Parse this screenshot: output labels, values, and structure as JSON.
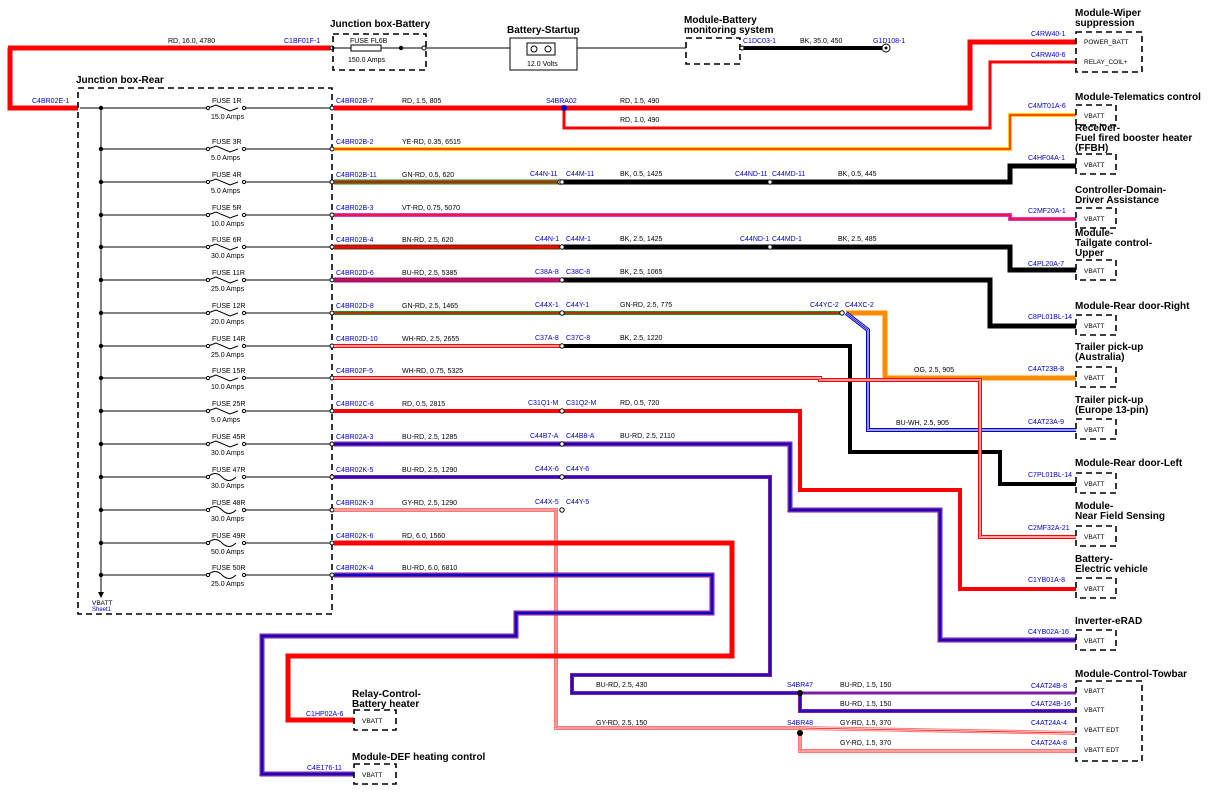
{
  "components": {
    "jb_battery": "Junction box-Battery",
    "battery_startup": "Battery-Startup",
    "battery_volts": "12.0 Volts",
    "bms": "Module-Battery monitoring system",
    "wiper": "Module-Wiper suppression",
    "jb_rear": "Junction box-Rear",
    "telematics": "Module-Telematics control",
    "ffbh": "Receiver-Fuel fired booster heater (FFBH)",
    "adas": "Controller-Domain-Driver Assistance",
    "tailgate": "Module-Tailgate control-Upper",
    "rear_door_right": "Module-Rear door-Right",
    "trailer_au": "Trailer pick-up (Australia)",
    "trailer_eu": "Trailer pick-up (Europe 13-pin)",
    "rear_door_left": "Module-Rear door-Left",
    "nfs": "Module-Near Field Sensing",
    "battery_ev": "Battery-Electric vehicle",
    "inverter": "Inverter-eRAD",
    "towbar": "Module-Control-Towbar",
    "relay_heater": "Relay-Control-Battery heater",
    "def": "Module-DEF heating control"
  },
  "top": {
    "wire_spec": "RD, 16.0, 4780",
    "conn_jb_in": "C1BF01F-1",
    "fuse_name": "FUSE FL6B",
    "fuse_amps": "150.0 Amps",
    "conn_bms": "C1DC03-1",
    "gnd_spec": "BK, 35.0, 450",
    "gnd_conn": "G1D108-1",
    "conn_rear_in": "C4BR02E-1",
    "wiper_pin1_conn": "C4RW40-1",
    "wiper_pin1_label": "POWER_BATT",
    "wiper_pin6_conn": "C4RW40-6",
    "wiper_pin6_label": "RELAY_COIL+",
    "splice": "S4BRA02",
    "spec_after_splice1": "RD, 1.5, 490",
    "spec_after_splice2": "RD, 1.0, 490"
  },
  "fuses": [
    {
      "name": "FUSE 1R",
      "amps": "15.0 Amps",
      "conn": "C4BR02B-7",
      "spec": "RD, 1.5, 805"
    },
    {
      "name": "FUSE 3R",
      "amps": "5.0 Amps",
      "conn": "C4BR02B-2",
      "spec": "YE-RD, 0.35, 6515"
    },
    {
      "name": "FUSE 4R",
      "amps": "5.0 Amps",
      "conn": "C4BR02B-11",
      "spec": "GN-RD, 0.5, 620"
    },
    {
      "name": "FUSE 5R",
      "amps": "10.0 Amps",
      "conn": "C4BR02B-3",
      "spec": "VT-RD, 0.75, 5070"
    },
    {
      "name": "FUSE 6R",
      "amps": "30.0 Amps",
      "conn": "C4BR02B-4",
      "spec": "BN-RD, 2.5, 620"
    },
    {
      "name": "FUSE 11R",
      "amps": "25.0 Amps",
      "conn": "C4BR02D-6",
      "spec": "BU-RD, 2.5, 5385"
    },
    {
      "name": "FUSE 12R",
      "amps": "20.0 Amps",
      "conn": "C4BR02D-8",
      "spec": "GN-RD, 2.5, 1465"
    },
    {
      "name": "FUSE 14R",
      "amps": "25.0 Amps",
      "conn": "C4BR02D-10",
      "spec": "WH-RD, 2.5, 2655"
    },
    {
      "name": "FUSE 15R",
      "amps": "10.0 Amps",
      "conn": "C4BR02F-5",
      "spec": "WH-RD, 0.75, 5325"
    },
    {
      "name": "FUSE 25R",
      "amps": "5.0 Amps",
      "conn": "C4BR02C-6",
      "spec": "RD, 0.5, 2815"
    },
    {
      "name": "FUSE 45R",
      "amps": "30.0 Amps",
      "conn": "C4BR02A-3",
      "spec": "BU-RD, 2.5, 1285"
    },
    {
      "name": "FUSE 47R",
      "amps": "30.0 Amps",
      "conn": "C4BR02K-5",
      "spec": "BU-RD, 2.5, 1290"
    },
    {
      "name": "FUSE 48R",
      "amps": "30.0 Amps",
      "conn": "C4BR02K-3",
      "spec": "GY-RD, 2.5, 1290"
    },
    {
      "name": "FUSE 49R",
      "amps": "50.0 Amps",
      "conn": "C4BR02K-6",
      "spec": "RD, 6.0, 1560"
    },
    {
      "name": "FUSE 50R",
      "amps": "25.0 Amps",
      "conn": "C4BR02K-4",
      "spec": "BU-RD, 6.0, 6810"
    }
  ],
  "inline": {
    "r4_a": "C44N-11",
    "r4_b": "C44M-11",
    "r4_spec": "BK, 0.5, 1425",
    "r4_c": "C44ND-11",
    "r4_d": "C44MD-11",
    "r4_spec2": "BK, 0.5, 445",
    "r6_a": "C44N-1",
    "r6_b": "C44M-1",
    "r6_spec": "BK, 2.5, 1425",
    "r6_c": "C44ND-1",
    "r6_d": "C44MD-1",
    "r6_spec2": "BK, 2.5, 485",
    "r11_a": "C38A-8",
    "r11_b": "C38C-8",
    "r11_spec": "BK, 2.5, 1065",
    "r12_a": "C44X-1",
    "r12_b": "C44Y-1",
    "r12_spec": "GN-RD, 2.5, 775",
    "r12_c": "C44YC-2",
    "r12_d": "C44XC-2",
    "r14_a": "C37A-8",
    "r14_b": "C37C-8",
    "r14_spec": "BK, 2.5, 1220",
    "r25_a": "C31Q1-M",
    "r25_b": "C31Q2-M",
    "r25_spec": "RD, 0.5, 720",
    "r45_a": "C44B7-A",
    "r45_b": "C44B8-A",
    "r45_spec": "BU-RD, 2.5, 2110",
    "r47_a": "C44X-6",
    "r47_b": "C44Y-6",
    "r48_a": "C44X-5",
    "r48_b": "C44Y-5",
    "og_spec": "OG, 2.5, 905",
    "buwh_spec": "BU-WH, 2.5, 905"
  },
  "dest_conns": {
    "telematics": "C4MT01A-6",
    "ffbh": "C4HF04A-1",
    "adas": "C2MF20A-1",
    "tailgate": "C4PL20A-7",
    "rear_door_right": "C8PL01BL-14",
    "trailer_au": "C4AT23B-8",
    "trailer_eu": "C4AT23A-9",
    "rear_door_left": "C7PL01BL-14",
    "nfs": "C2MF32A-21",
    "battery_ev": "C1YB01A-8",
    "inverter": "C4YB02A-16",
    "towbar_1": "C4AT24B-8",
    "towbar_2": "C4AT24B-16",
    "towbar_3": "C4AT24A-4",
    "towbar_4": "C4AT24A-8",
    "relay_heater": "C1HP02A-6",
    "def": "C4E176-11"
  },
  "pins": {
    "vbatt": "VBATT",
    "vbatt_edt": "VBATT EDT"
  },
  "towbar": {
    "spec_in47": "BU-RD, 2.5, 430",
    "splice47": "S4BR47",
    "spec_47a": "BU-RD, 1.5, 150",
    "spec_47b": "BU-RD, 1.5, 150",
    "spec_in48": "GY-RD, 2.5, 150",
    "splice48": "S4BR48",
    "spec_48a": "GY-RD, 1.5, 370",
    "spec_48b": "GY-RD, 1.5, 370"
  },
  "sheet_ref": {
    "label": "VBATT",
    "link": "Sheet1"
  }
}
